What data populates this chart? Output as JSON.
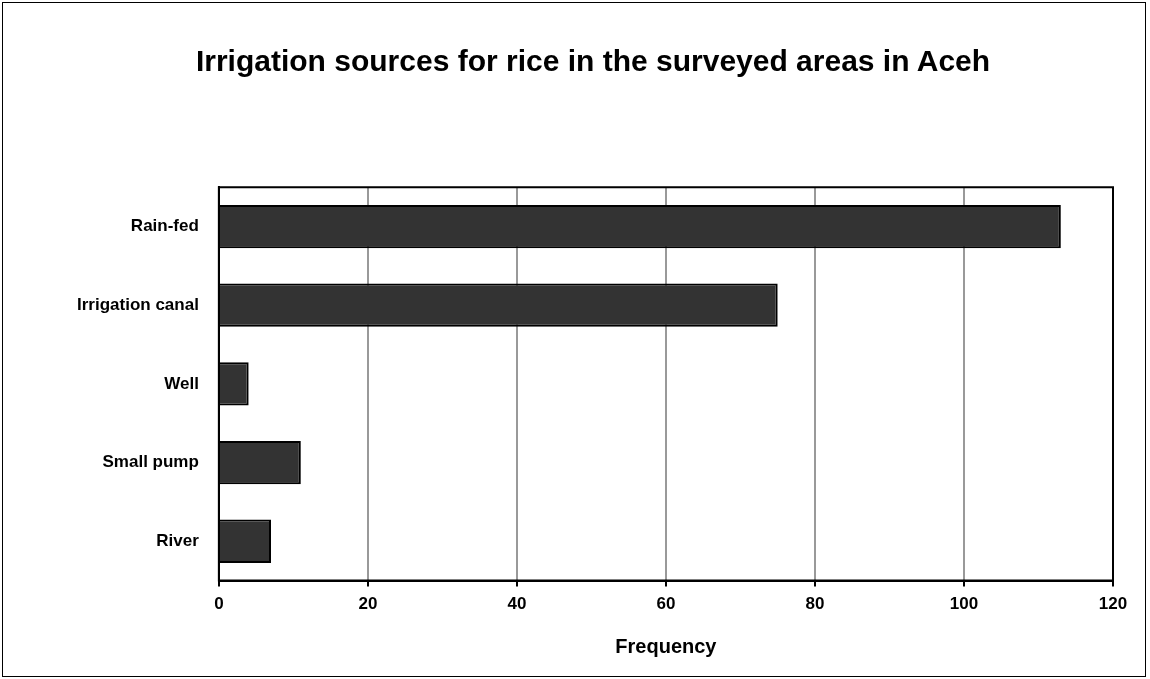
{
  "chart_data": {
    "type": "bar",
    "orientation": "horizontal",
    "title": "Irrigation sources for rice in the surveyed areas in Aceh",
    "xlabel": "Frequency",
    "categories": [
      "Rain-fed",
      "Irrigation canal",
      "Well",
      "Small pump",
      "River"
    ],
    "values": [
      113,
      75,
      4,
      11,
      7
    ],
    "color": "#333333",
    "xlim": [
      0,
      120
    ],
    "xticks": [
      0,
      20,
      40,
      60,
      80,
      100,
      120
    ],
    "grid": "x",
    "legend": false
  }
}
